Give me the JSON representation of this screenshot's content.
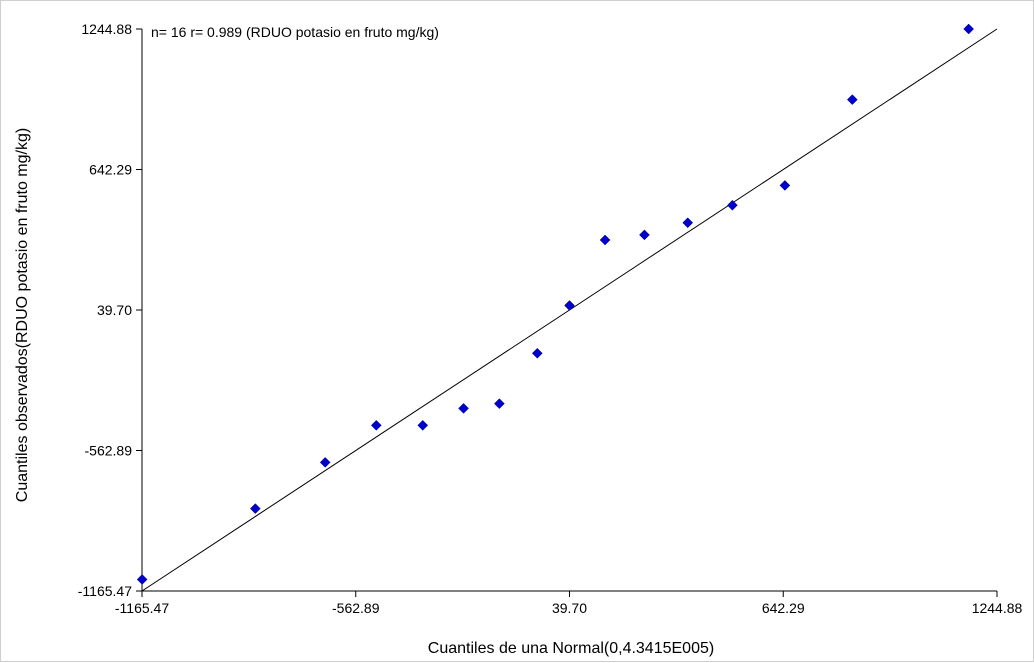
{
  "chart_data": {
    "type": "scatter",
    "annotation": "n= 16 r= 0.989 (RDUO potasio en fruto  mg/kg)",
    "xlabel": "Cuantiles de una Normal(0,4.3415E005)",
    "ylabel": "Cuantiles observados(RDUO potasio en fruto  mg/kg)",
    "xlim": [
      -1165.47,
      1244.88
    ],
    "ylim": [
      -1165.47,
      1244.88
    ],
    "x_ticks": [
      -1165.47,
      -562.89,
      39.7,
      642.29,
      1244.88
    ],
    "y_ticks": [
      -1165.47,
      -562.89,
      39.7,
      642.29,
      1244.88
    ],
    "x_tick_labels": [
      "-1165.47",
      "-562.89",
      "39.70",
      "642.29",
      "1244.88"
    ],
    "y_tick_labels": [
      "-1165.47",
      "-562.89",
      "39.70",
      "642.29",
      "1244.88"
    ],
    "grid": false,
    "point_color": "#0000cc",
    "line_color": "#000000",
    "reference_line": {
      "x": [
        -1165.47,
        1244.88
      ],
      "y": [
        -1165.47,
        1244.88
      ]
    },
    "points": [
      {
        "x": -1165.0,
        "y": -1116.0
      },
      {
        "x": -846.0,
        "y": -812.0
      },
      {
        "x": -649.0,
        "y": -614.0
      },
      {
        "x": -505.0,
        "y": -455.0
      },
      {
        "x": -374.0,
        "y": -455.0
      },
      {
        "x": -259.0,
        "y": -382.0
      },
      {
        "x": -158.0,
        "y": -362.0
      },
      {
        "x": -51.0,
        "y": -146.0
      },
      {
        "x": 39.7,
        "y": 59.0
      },
      {
        "x": 140.0,
        "y": 340.0
      },
      {
        "x": 251.0,
        "y": 362.0
      },
      {
        "x": 373.0,
        "y": 414.0
      },
      {
        "x": 499.0,
        "y": 489.0
      },
      {
        "x": 647.0,
        "y": 574.0
      },
      {
        "x": 837.0,
        "y": 942.0
      },
      {
        "x": 1165.0,
        "y": 1244.88
      }
    ]
  }
}
